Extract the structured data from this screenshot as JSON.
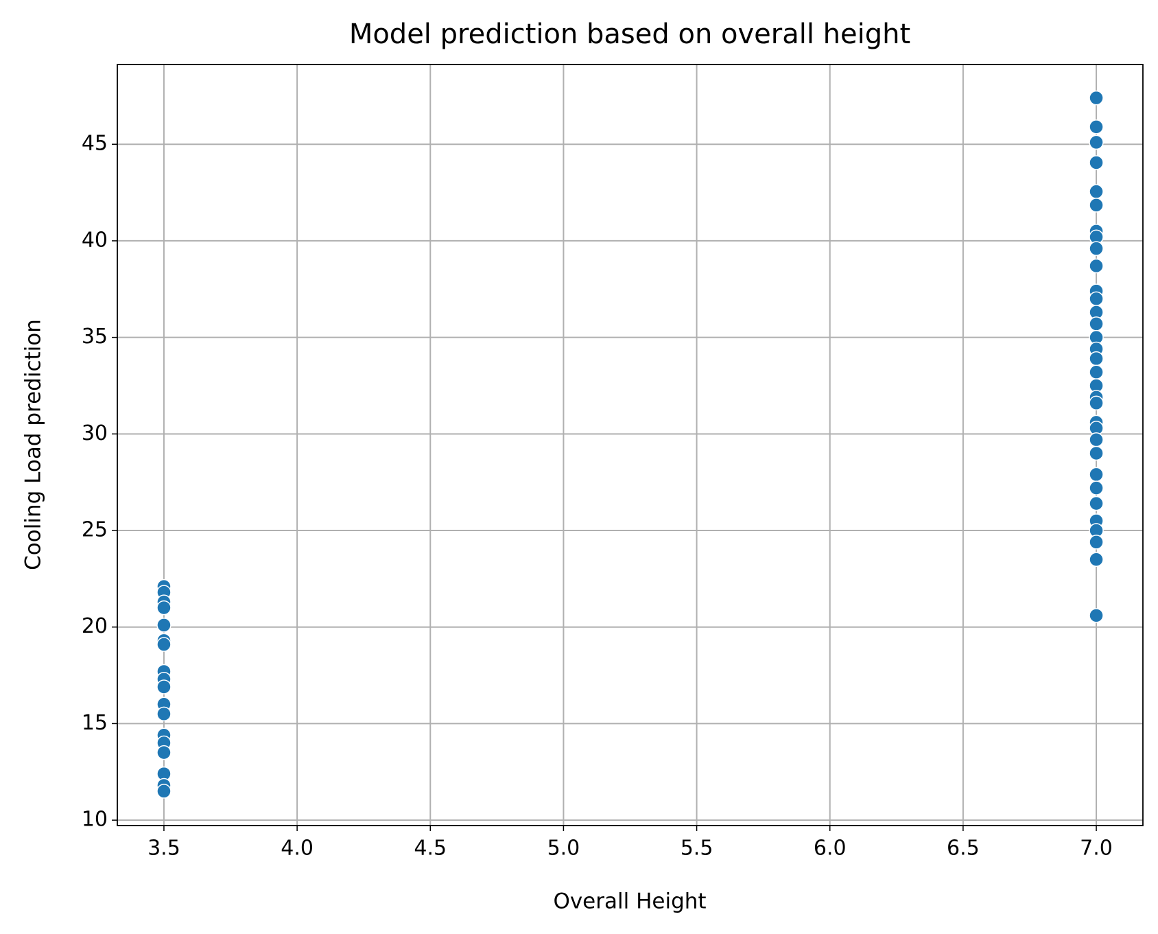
{
  "chart_data": {
    "type": "scatter",
    "title": "Model prediction based on overall height",
    "x_label": "Overall Height",
    "y_label": "Cooling Load prediction",
    "color": "#1f77b4",
    "grid": true,
    "xlim": [
      3.325,
      7.175
    ],
    "ylim": [
      9.72,
      49.13
    ],
    "xticks": [
      3.5,
      {
        "value": 4,
        "label": "4.0"
      },
      4.5,
      {
        "value": 5,
        "label": "5.0"
      },
      5.5,
      {
        "value": 6,
        "label": "6.0"
      },
      6.5,
      {
        "value": 7,
        "label": "7.0"
      }
    ],
    "yticks": [
      10,
      15,
      20,
      25,
      30,
      35,
      40,
      45
    ],
    "x": [
      3.5,
      3.5,
      3.5,
      3.5,
      3.5,
      3.5,
      3.5,
      3.5,
      3.5,
      3.5,
      3.5,
      3.5,
      3.5,
      3.5,
      3.5,
      3.5,
      3.5,
      3.5,
      7,
      7,
      7,
      7,
      7,
      7,
      7,
      7,
      7,
      7,
      7,
      7,
      7,
      7,
      7,
      7,
      7,
      7,
      7,
      7,
      7,
      7,
      7,
      7,
      7,
      7,
      7,
      7,
      7,
      7,
      7,
      7,
      7
    ],
    "y": [
      22.1,
      21.8,
      21.3,
      21.0,
      20.1,
      19.3,
      19.1,
      17.7,
      17.3,
      16.9,
      16.0,
      15.5,
      14.4,
      14.0,
      13.5,
      12.4,
      11.8,
      11.5,
      47.4,
      45.9,
      45.1,
      44.05,
      42.55,
      41.85,
      40.5,
      40.2,
      39.6,
      38.7,
      37.4,
      37.0,
      36.3,
      35.7,
      35.0,
      34.4,
      33.9,
      33.2,
      32.5,
      31.9,
      31.6,
      30.6,
      30.3,
      29.7,
      29.0,
      27.9,
      27.2,
      26.4,
      25.5,
      25.0,
      24.4,
      23.5,
      20.6
    ]
  }
}
